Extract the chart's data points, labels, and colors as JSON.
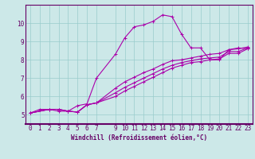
{
  "xlabel": "Windchill (Refroidissement éolien,°C)",
  "background_color": "#cce8e8",
  "grid_color": "#99cccc",
  "line_color": "#aa00aa",
  "xlim": [
    -0.5,
    23.5
  ],
  "ylim": [
    4.5,
    11.0
  ],
  "xticks": [
    0,
    1,
    2,
    3,
    4,
    5,
    6,
    7,
    9,
    10,
    11,
    12,
    13,
    14,
    15,
    16,
    17,
    18,
    19,
    20,
    21,
    22,
    23
  ],
  "yticks": [
    5,
    6,
    7,
    8,
    9,
    10
  ],
  "curve1_x": [
    0,
    1,
    2,
    3,
    4,
    5,
    6,
    7,
    9,
    10,
    11,
    12,
    13,
    14,
    15,
    16,
    17,
    18,
    19,
    20,
    21,
    22,
    23
  ],
  "curve1_y": [
    5.1,
    5.3,
    5.3,
    5.2,
    5.2,
    5.5,
    5.6,
    7.0,
    8.3,
    9.2,
    9.8,
    9.9,
    10.1,
    10.45,
    10.35,
    9.4,
    8.65,
    8.65,
    8.0,
    8.0,
    8.55,
    8.65,
    8.6
  ],
  "curve2_x": [
    0,
    2,
    3,
    4,
    5,
    6,
    7,
    9,
    10,
    11,
    12,
    13,
    14,
    15,
    16,
    17,
    18,
    19,
    20,
    21,
    22,
    23
  ],
  "curve2_y": [
    5.1,
    5.3,
    5.3,
    5.2,
    5.15,
    5.55,
    5.65,
    6.0,
    6.3,
    6.55,
    6.8,
    7.05,
    7.3,
    7.55,
    7.7,
    7.85,
    7.9,
    8.0,
    8.05,
    8.35,
    8.35,
    8.6
  ],
  "curve3_x": [
    0,
    2,
    3,
    4,
    5,
    6,
    7,
    9,
    10,
    11,
    12,
    13,
    14,
    15,
    16,
    17,
    18,
    19,
    20,
    21,
    22,
    23
  ],
  "curve3_y": [
    5.1,
    5.3,
    5.3,
    5.2,
    5.15,
    5.55,
    5.65,
    6.2,
    6.5,
    6.75,
    7.0,
    7.25,
    7.5,
    7.7,
    7.85,
    7.95,
    8.05,
    8.1,
    8.15,
    8.45,
    8.45,
    8.65
  ],
  "curve4_x": [
    0,
    2,
    3,
    4,
    5,
    6,
    7,
    9,
    10,
    11,
    12,
    13,
    14,
    15,
    16,
    17,
    18,
    19,
    20,
    21,
    22,
    23
  ],
  "curve4_y": [
    5.1,
    5.3,
    5.3,
    5.2,
    5.15,
    5.55,
    5.65,
    6.45,
    6.8,
    7.05,
    7.3,
    7.5,
    7.75,
    7.95,
    8.0,
    8.1,
    8.2,
    8.3,
    8.35,
    8.55,
    8.6,
    8.7
  ],
  "tick_fontsize": 5.5,
  "xlabel_fontsize": 5.5
}
